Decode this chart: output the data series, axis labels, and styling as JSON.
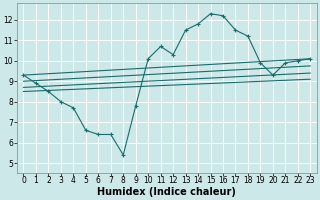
{
  "bg_color": "#cce8e8",
  "grid_color": "#ffffff",
  "line_color": "#1a6b6b",
  "marker": "+",
  "markersize": 3,
  "linewidth": 0.8,
  "xlabel": "Humidex (Indice chaleur)",
  "xlabel_fontsize": 7,
  "tick_fontsize": 5.5,
  "xlim": [
    -0.5,
    23.5
  ],
  "ylim": [
    4.5,
    12.8
  ],
  "xticks": [
    0,
    1,
    2,
    3,
    4,
    5,
    6,
    7,
    8,
    9,
    10,
    11,
    12,
    13,
    14,
    15,
    16,
    17,
    18,
    19,
    20,
    21,
    22,
    23
  ],
  "yticks": [
    5,
    6,
    7,
    8,
    9,
    10,
    11,
    12
  ],
  "line1_x": [
    0,
    1,
    2,
    3,
    4,
    5,
    6,
    7,
    8,
    9,
    10,
    11,
    12,
    13,
    14,
    15,
    16,
    17,
    18,
    19,
    20,
    21,
    22,
    23
  ],
  "line1_y": [
    9.3,
    8.9,
    8.5,
    8.0,
    7.7,
    6.6,
    6.4,
    6.4,
    5.4,
    7.8,
    10.1,
    10.7,
    10.3,
    11.5,
    11.8,
    12.3,
    12.2,
    11.5,
    11.2,
    9.9,
    9.3,
    9.9,
    10.0,
    10.1
  ],
  "line2_x": [
    0,
    23
  ],
  "line2_y": [
    9.3,
    10.1
  ],
  "line3_x": [
    0,
    23
  ],
  "line3_y": [
    9.0,
    9.75
  ],
  "line4_x": [
    0,
    23
  ],
  "line4_y": [
    8.7,
    9.4
  ],
  "line5_x": [
    0,
    23
  ],
  "line5_y": [
    8.5,
    9.1
  ]
}
